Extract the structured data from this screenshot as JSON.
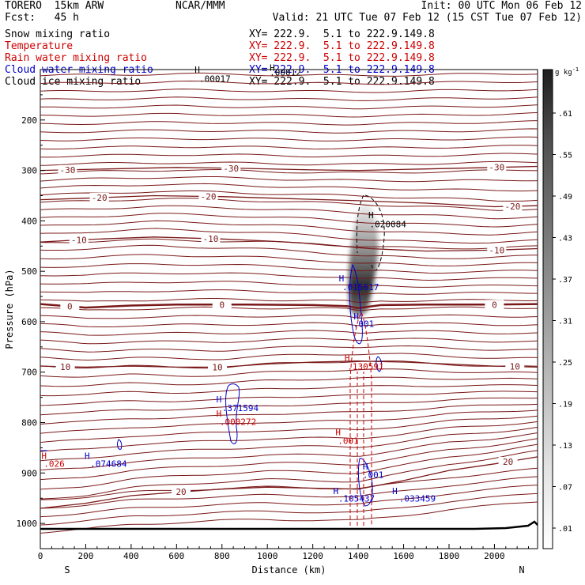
{
  "header": {
    "model": "TORERO  15km ARW",
    "org": "NCAR/MMM",
    "init": "Init: 00 UTC Mon 06 Feb 12",
    "fcst": "Fcst:   45 h",
    "valid": "Valid: 21 UTC Tue 07 Feb 12 (15 CST Tue 07 Feb 12)"
  },
  "legend": [
    {
      "name": "Snow mixing ratio",
      "xy": "XY= 222.9.  5.1 to 222.9.149.8",
      "color": "#000000"
    },
    {
      "name": "Temperature",
      "xy": "XY= 222.9.  5.1 to 222.9.149.8",
      "color": "#cc0000"
    },
    {
      "name": "Rain water mixing ratio",
      "xy": "XY= 222.9.  5.1 to 222.9.149.8",
      "color": "#cc0000"
    },
    {
      "name": "Cloud water mixing ratio",
      "xy": "XY= 222.9.  5.1 to 222.9.149.8",
      "color": "#0000cc"
    },
    {
      "name": "Cloud ice mixing ratio",
      "xy": "XY= 222.9.  5.1 to 222.9.149.8",
      "color": "#000000"
    }
  ],
  "chart_data": {
    "type": "cross-section",
    "xlabel": "Distance (km)",
    "ylabel": "Pressure (hPa)",
    "xlim": [
      0,
      2190
    ],
    "ylim": [
      1050,
      100
    ],
    "xticks": [
      0,
      200,
      400,
      600,
      800,
      1000,
      1200,
      1400,
      1600,
      1800,
      2000
    ],
    "yticks": [
      200,
      300,
      400,
      500,
      600,
      700,
      800,
      900,
      1000
    ],
    "x_end_labels": {
      "left": "S",
      "right": "N"
    },
    "colorbar": {
      "unit": "g kg",
      "unit_exp": "-1",
      "ticks": [
        ".61",
        ".55",
        ".49",
        ".43",
        ".37",
        ".31",
        ".25",
        ".19",
        ".13",
        ".07",
        ".01"
      ],
      "vmin": 0.01,
      "vmax": 0.67
    },
    "temperature_contours": [
      {
        "label": "-30",
        "p": [
          [
            0,
            300
          ],
          [
            300,
            297
          ],
          [
            600,
            294
          ],
          [
            900,
            296
          ],
          [
            1200,
            299
          ],
          [
            1400,
            300
          ],
          [
            1700,
            297
          ],
          [
            2000,
            294
          ],
          [
            2190,
            292
          ]
        ],
        "labels": [
          [
            120,
            -30
          ],
          [
            840,
            -30
          ],
          [
            2010,
            -30
          ]
        ]
      },
      {
        "label": "-20",
        "p": [
          [
            0,
            358
          ],
          [
            200,
            355
          ],
          [
            500,
            350
          ],
          [
            800,
            352
          ],
          [
            1100,
            356
          ],
          [
            1400,
            360
          ],
          [
            1700,
            365
          ],
          [
            2000,
            372
          ],
          [
            2190,
            370
          ]
        ],
        "labels": [
          [
            260,
            -20
          ],
          [
            740,
            -20
          ],
          [
            2080,
            -20
          ]
        ]
      },
      {
        "label": "-10",
        "p": [
          [
            0,
            442
          ],
          [
            200,
            437
          ],
          [
            500,
            432
          ],
          [
            800,
            436
          ],
          [
            1000,
            440
          ],
          [
            1200,
            445
          ],
          [
            1450,
            455
          ],
          [
            1700,
            460
          ],
          [
            2000,
            458
          ],
          [
            2190,
            455
          ]
        ],
        "labels": [
          [
            170,
            -10
          ],
          [
            750,
            -10
          ],
          [
            2010,
            -10
          ]
        ]
      },
      {
        "label": "0",
        "p": [
          [
            0,
            565
          ],
          [
            200,
            572
          ],
          [
            400,
            568
          ],
          [
            600,
            566
          ],
          [
            900,
            566
          ],
          [
            1200,
            567
          ],
          [
            1350,
            569
          ],
          [
            1400,
            573
          ],
          [
            1500,
            567
          ],
          [
            1700,
            566
          ],
          [
            2000,
            566
          ],
          [
            2190,
            565
          ]
        ],
        "labels": [
          [
            130,
            0
          ],
          [
            800,
            0
          ],
          [
            2000,
            0
          ]
        ],
        "thick": true
      },
      {
        "label": "10",
        "p": [
          [
            0,
            688
          ],
          [
            200,
            690
          ],
          [
            400,
            688
          ],
          [
            600,
            690
          ],
          [
            800,
            690
          ],
          [
            1000,
            684
          ],
          [
            1200,
            680
          ],
          [
            1400,
            678
          ],
          [
            1600,
            680
          ],
          [
            1800,
            684
          ],
          [
            2000,
            688
          ],
          [
            2190,
            690
          ]
        ],
        "labels": [
          [
            110,
            10
          ],
          [
            780,
            10
          ],
          [
            2090,
            10
          ]
        ]
      },
      {
        "label": "20",
        "p": [
          [
            0,
            970
          ],
          [
            200,
            960
          ],
          [
            400,
            945
          ],
          [
            600,
            938
          ],
          [
            800,
            932
          ],
          [
            1000,
            928
          ],
          [
            1200,
            930
          ],
          [
            1400,
            932
          ],
          [
            1600,
            915
          ],
          [
            1800,
            895
          ],
          [
            2000,
            882
          ],
          [
            2190,
            868
          ]
        ],
        "labels": [
          [
            620,
            20
          ],
          [
            2060,
            20
          ]
        ]
      }
    ],
    "max_labels": [
      {
        "text": ".020084",
        "h_x": 1445,
        "h_p": 395,
        "v_x": 1450,
        "v_p": 413,
        "color": "#000000"
      },
      {
        "text": ".015617",
        "h_x": 1315,
        "h_p": 520,
        "v_x": 1330,
        "v_p": 537,
        "color": "#0000cc"
      },
      {
        "text": ".001",
        "h_x": 1380,
        "h_p": 595,
        "v_x": 1378,
        "v_p": 610,
        "color": "#0000cc"
      },
      {
        "text": ".130591",
        "h_x": 1340,
        "h_p": 678,
        "v_x": 1352,
        "v_p": 695,
        "color": "#cc0000"
      },
      {
        "text": ".371594",
        "h_x": 775,
        "h_p": 760,
        "v_x": 800,
        "v_p": 777,
        "color": "#0000cc"
      },
      {
        "text": ".000272",
        "h_x": 775,
        "h_p": 788,
        "v_x": 790,
        "v_p": 805,
        "color": "#cc0000"
      },
      {
        "text": ".001",
        "h_x": 1300,
        "h_p": 825,
        "v_x": 1310,
        "v_p": 842,
        "color": "#cc0000"
      },
      {
        "text": ".074684",
        "h_x": 195,
        "h_p": 872,
        "v_x": 220,
        "v_p": 888,
        "color": "#0000cc"
      },
      {
        "text": ".001",
        "h_x": 1420,
        "h_p": 893,
        "v_x": 1420,
        "v_p": 910,
        "color": "#0000cc"
      },
      {
        "text": ".105437",
        "h_x": 1290,
        "h_p": 942,
        "v_x": 1312,
        "v_p": 957,
        "color": "#0000cc"
      },
      {
        "text": ".033459",
        "h_x": 1550,
        "h_p": 942,
        "v_x": 1580,
        "v_p": 957,
        "color": "#0000cc"
      },
      {
        "text": ".00012",
        "h_x": 1010,
        "h_p": 102,
        "v_x": 1010,
        "v_p": 112,
        "color": "#000000"
      },
      {
        "text": ".00017",
        "h_x": 680,
        "h_p": 106,
        "v_x": 700,
        "v_p": 124,
        "color": "#000000"
      },
      {
        "text": ".026",
        "h_x": 5,
        "h_p": 872,
        "v_x": 15,
        "v_p": 888,
        "color": "#cc0000"
      }
    ]
  }
}
